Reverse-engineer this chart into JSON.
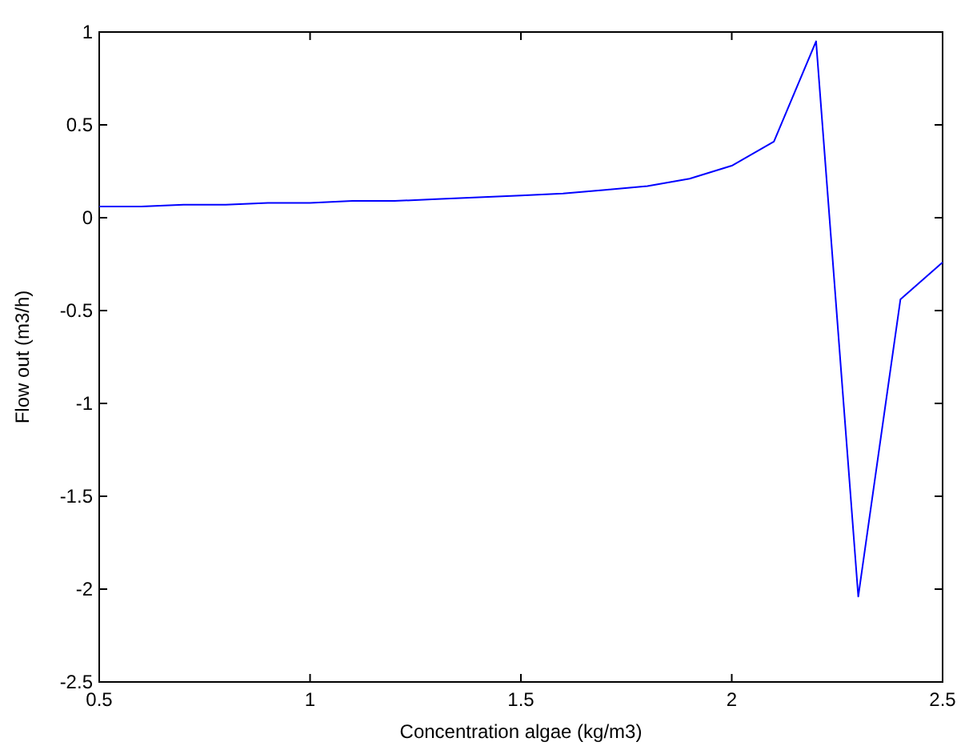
{
  "chart_data": {
    "type": "line",
    "xlabel": "Concentration algae (kg/m3)",
    "ylabel": "Flow out (m3/h)",
    "x": [
      0.5,
      0.6,
      0.7,
      0.8,
      0.9,
      1.0,
      1.1,
      1.2,
      1.3,
      1.4,
      1.5,
      1.6,
      1.7,
      1.8,
      1.9,
      2.0,
      2.1,
      2.2,
      2.3,
      2.4,
      2.5
    ],
    "series": [
      {
        "color": "#0000ff",
        "values": [
          0.06,
          0.06,
          0.07,
          0.07,
          0.08,
          0.08,
          0.09,
          0.09,
          0.1,
          0.11,
          0.12,
          0.13,
          0.15,
          0.17,
          0.21,
          0.28,
          0.41,
          0.95,
          -2.04,
          -0.44,
          -0.24
        ]
      }
    ],
    "xlim": [
      0.5,
      2.5
    ],
    "xticks": [
      0.5,
      1,
      1.5,
      2,
      2.5
    ],
    "ylim": [
      -2.5,
      1
    ],
    "yticks": [
      -2.5,
      -2,
      -1.5,
      -1,
      -0.5,
      0,
      0.5,
      1
    ],
    "grid": false
  }
}
